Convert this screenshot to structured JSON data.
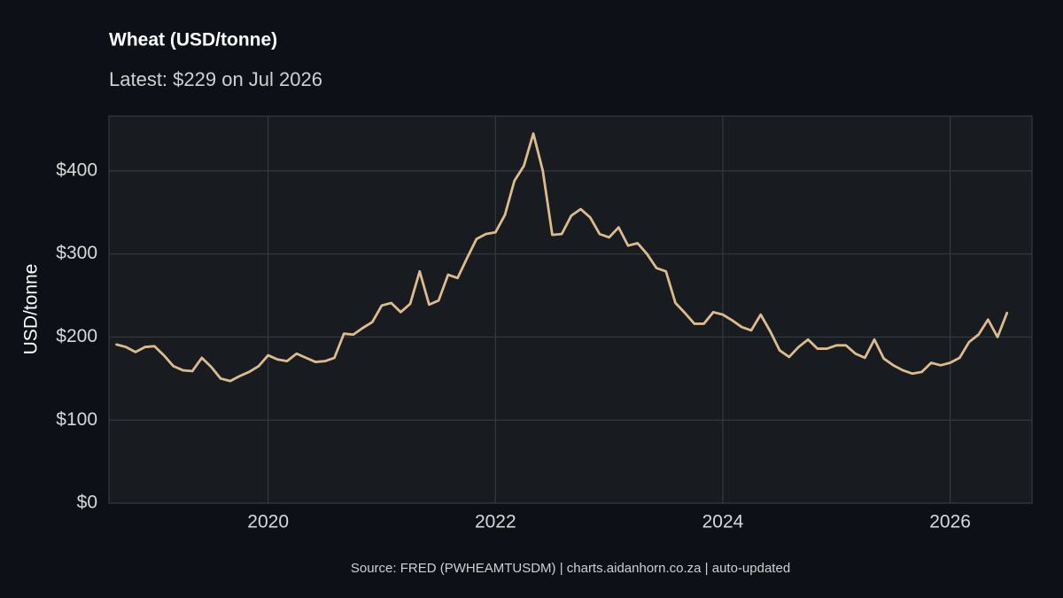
{
  "chart_data": {
    "type": "line",
    "title": "Wheat (USD/tonne)",
    "subtitle": "Latest: $229 on Jul 2026",
    "y_label": "USD/tonne",
    "caption": "Source: FRED (PWHEAMTUSDM) | charts.aidanhorn.co.za | auto-updated",
    "color": "#dcbb8c",
    "grid": true,
    "xlim": [
      2018.6,
      2026.72
    ],
    "xticks": [
      2020,
      2022,
      2024,
      2026
    ],
    "ylim": [
      0,
      466
    ],
    "yticks": [
      {
        "value": 0,
        "label": "$0"
      },
      {
        "value": 100,
        "label": "$100"
      },
      {
        "value": 200,
        "label": "$200"
      },
      {
        "value": 300,
        "label": "$300"
      },
      {
        "value": 400,
        "label": "$400"
      }
    ],
    "x": [
      "2018-09",
      "2018-10",
      "2018-11",
      "2018-12",
      "2019-01",
      "2019-02",
      "2019-03",
      "2019-04",
      "2019-05",
      "2019-06",
      "2019-07",
      "2019-08",
      "2019-09",
      "2019-10",
      "2019-11",
      "2019-12",
      "2020-01",
      "2020-02",
      "2020-03",
      "2020-04",
      "2020-05",
      "2020-06",
      "2020-07",
      "2020-08",
      "2020-09",
      "2020-10",
      "2020-11",
      "2020-12",
      "2021-01",
      "2021-02",
      "2021-03",
      "2021-04",
      "2021-05",
      "2021-06",
      "2021-07",
      "2021-08",
      "2021-09",
      "2021-10",
      "2021-11",
      "2021-12",
      "2022-01",
      "2022-02",
      "2022-03",
      "2022-04",
      "2022-05",
      "2022-06",
      "2022-07",
      "2022-08",
      "2022-09",
      "2022-10",
      "2022-11",
      "2022-12",
      "2023-01",
      "2023-02",
      "2023-03",
      "2023-04",
      "2023-05",
      "2023-06",
      "2023-07",
      "2023-08",
      "2023-09",
      "2023-10",
      "2023-11",
      "2023-12",
      "2024-01",
      "2024-02",
      "2024-03",
      "2024-04",
      "2024-05",
      "2024-06",
      "2024-07",
      "2024-08",
      "2024-09",
      "2024-10",
      "2024-11",
      "2024-12",
      "2025-01",
      "2025-02",
      "2025-03",
      "2025-04",
      "2025-05",
      "2025-06",
      "2025-07",
      "2025-08",
      "2025-09",
      "2025-10",
      "2025-11",
      "2025-12",
      "2026-01",
      "2026-02",
      "2026-03",
      "2026-04",
      "2026-05",
      "2026-06",
      "2026-07"
    ],
    "values": [
      191,
      188,
      182,
      188,
      189,
      178,
      165,
      160,
      159,
      175,
      164,
      150,
      147,
      153,
      158,
      165,
      178,
      173,
      171,
      180,
      175,
      170,
      171,
      175,
      204,
      203,
      211,
      218,
      238,
      241,
      230,
      240,
      279,
      239,
      244,
      275,
      271,
      295,
      318,
      324,
      326,
      347,
      388,
      406,
      445,
      400,
      323,
      324,
      346,
      354,
      344,
      324,
      320,
      332,
      310,
      313,
      300,
      283,
      279,
      241,
      229,
      216,
      216,
      230,
      227,
      220,
      212,
      208,
      227,
      207,
      184,
      176,
      188,
      197,
      186,
      186,
      190,
      190,
      180,
      175,
      197,
      174,
      166,
      160,
      156,
      158,
      169,
      166,
      169,
      175,
      194,
      203,
      221,
      200,
      229
    ]
  }
}
